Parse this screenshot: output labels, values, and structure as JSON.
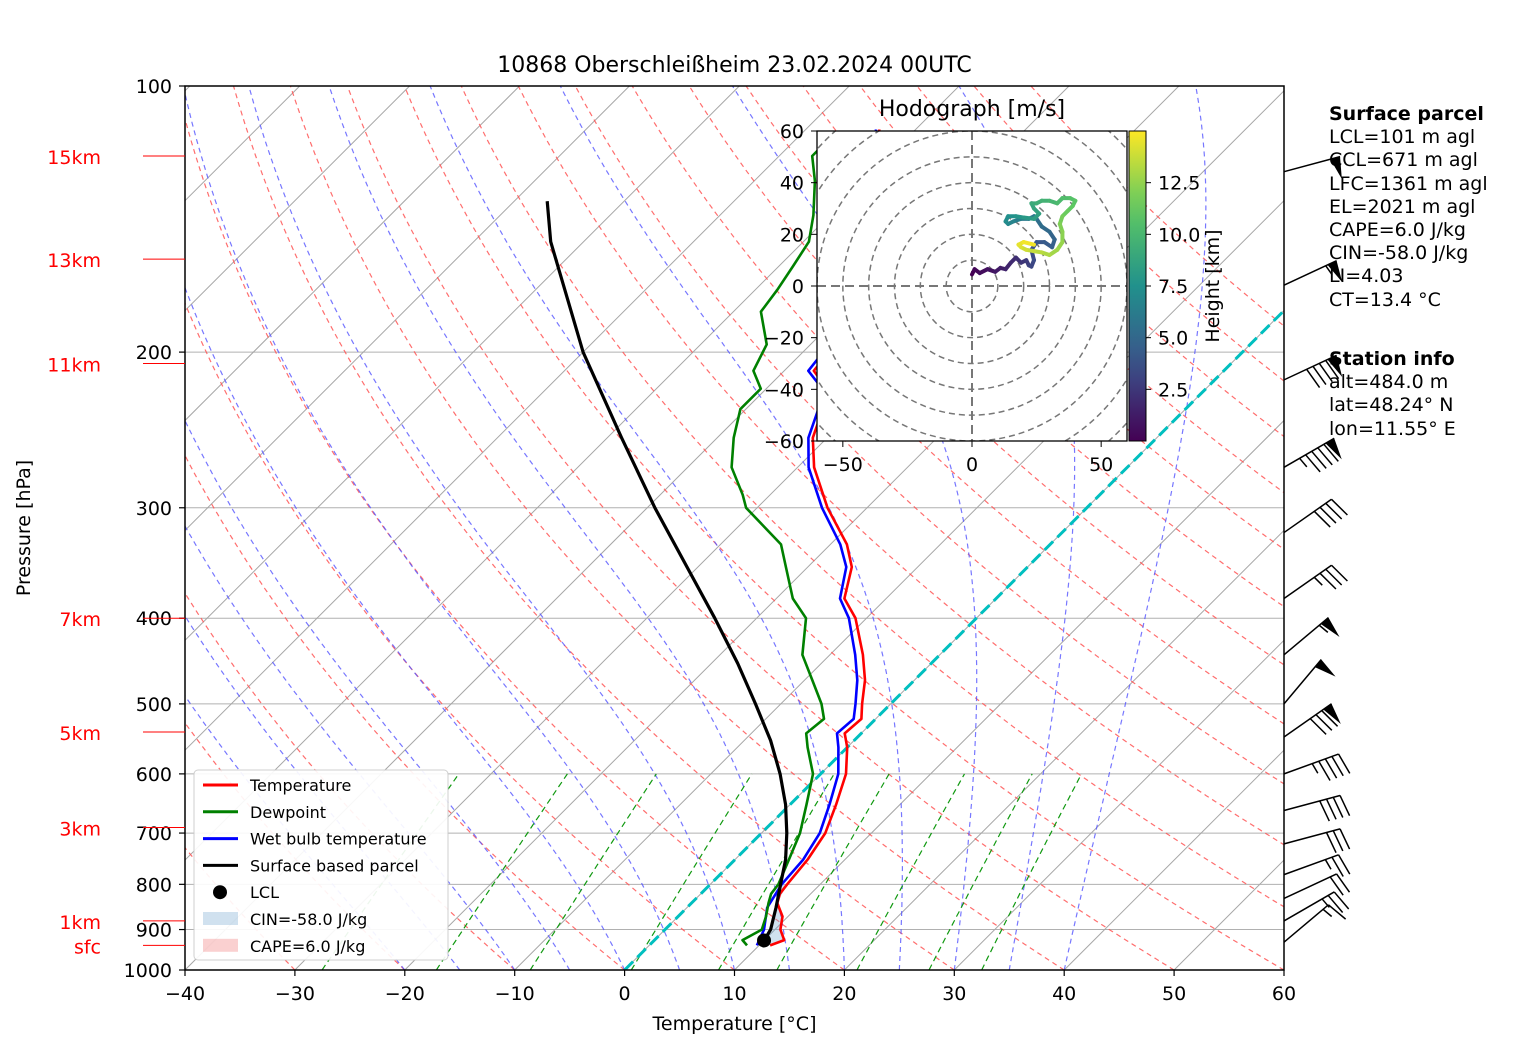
{
  "title": "10868 Oberschleißheim 23.02.2024 00UTC",
  "chart_data": {
    "type": "skew-t",
    "xlabel": "Temperature [°C]",
    "ylabel": "Pressure [hPa]",
    "xlim": [
      -40,
      60
    ],
    "ylim": [
      1000,
      100
    ],
    "x_ticks": [
      -40,
      -30,
      -20,
      -10,
      0,
      10,
      20,
      30,
      40,
      50,
      60
    ],
    "y_ticks": [
      1000,
      900,
      800,
      700,
      600,
      500,
      400,
      300,
      200,
      100
    ],
    "grid": true,
    "height_labels": [
      {
        "label": "15km",
        "pressure": 120
      },
      {
        "label": "13km",
        "pressure": 157
      },
      {
        "label": "11km",
        "pressure": 206
      },
      {
        "label": "7km",
        "pressure": 400
      },
      {
        "label": "5km",
        "pressure": 538
      },
      {
        "label": "3km",
        "pressure": 690
      },
      {
        "label": "1km",
        "pressure": 880
      },
      {
        "label": "sfc",
        "pressure": 938
      }
    ],
    "legend": {
      "location": "lower-left",
      "entries": [
        "Temperature",
        "Dewpoint",
        "Wet bulb temperature",
        "Surface based parcel",
        "LCL",
        "CIN=-58.0 J/kg",
        "CAPE=6.0 J/kg"
      ]
    },
    "series": [
      {
        "name": "Temperature",
        "color": "#ff0000",
        "points": [
          [
            938,
            11.0
          ],
          [
            925,
            11.8
          ],
          [
            900,
            10.5
          ],
          [
            870,
            9.5
          ],
          [
            840,
            7.8
          ],
          [
            820,
            7.2
          ],
          [
            800,
            7.0
          ],
          [
            750,
            6.6
          ],
          [
            700,
            5.8
          ],
          [
            650,
            4.2
          ],
          [
            600,
            2.3
          ],
          [
            560,
            0.0
          ],
          [
            540,
            -1.5
          ],
          [
            520,
            -1.3
          ],
          [
            500,
            -2.6
          ],
          [
            470,
            -4.5
          ],
          [
            440,
            -7.0
          ],
          [
            400,
            -11.0
          ],
          [
            380,
            -13.8
          ],
          [
            350,
            -16.0
          ],
          [
            330,
            -18.5
          ],
          [
            300,
            -23.6
          ],
          [
            270,
            -28.5
          ],
          [
            250,
            -31.3
          ],
          [
            232,
            -33.0
          ],
          [
            220,
            -34.5
          ],
          [
            210,
            -37.3
          ],
          [
            196,
            -37.8
          ],
          [
            190,
            -37.4
          ],
          [
            180,
            -37.5
          ],
          [
            170,
            -39.5
          ],
          [
            160,
            -43.0
          ],
          [
            150,
            -44.5
          ],
          [
            138,
            -46.5
          ],
          [
            128,
            -49.0
          ],
          [
            120,
            -51.0
          ],
          [
            112,
            -53.3
          ]
        ]
      },
      {
        "name": "Wet bulb temperature",
        "color": "#0000ff",
        "points": [
          [
            938,
            9.8
          ],
          [
            900,
            9.0
          ],
          [
            850,
            7.3
          ],
          [
            800,
            6.5
          ],
          [
            750,
            6.2
          ],
          [
            700,
            5.3
          ],
          [
            650,
            3.6
          ],
          [
            600,
            1.6
          ],
          [
            560,
            -0.8
          ],
          [
            540,
            -2.2
          ],
          [
            520,
            -2.0
          ],
          [
            500,
            -3.2
          ],
          [
            470,
            -5.2
          ],
          [
            440,
            -7.7
          ],
          [
            400,
            -11.6
          ],
          [
            380,
            -14.2
          ],
          [
            350,
            -16.5
          ],
          [
            330,
            -19.1
          ],
          [
            300,
            -24.1
          ],
          [
            270,
            -29.0
          ],
          [
            250,
            -31.7
          ],
          [
            232,
            -33.4
          ],
          [
            220,
            -34.9
          ],
          [
            210,
            -37.8
          ],
          [
            196,
            -38.3
          ],
          [
            190,
            -38.0
          ],
          [
            180,
            -38.0
          ],
          [
            170,
            -40.0
          ],
          [
            160,
            -43.4
          ],
          [
            150,
            -44.9
          ],
          [
            138,
            -46.9
          ],
          [
            128,
            -49.4
          ],
          [
            120,
            -51.4
          ],
          [
            112,
            -53.6
          ]
        ]
      },
      {
        "name": "Dewpoint",
        "color": "#008000",
        "points": [
          [
            938,
            8.9
          ],
          [
            925,
            8.0
          ],
          [
            900,
            8.8
          ],
          [
            870,
            8.0
          ],
          [
            840,
            7.0
          ],
          [
            820,
            6.4
          ],
          [
            800,
            6.2
          ],
          [
            750,
            4.9
          ],
          [
            700,
            3.5
          ],
          [
            650,
            1.5
          ],
          [
            600,
            -0.7
          ],
          [
            560,
            -3.6
          ],
          [
            540,
            -5.0
          ],
          [
            520,
            -4.7
          ],
          [
            500,
            -6.3
          ],
          [
            470,
            -9.3
          ],
          [
            440,
            -12.5
          ],
          [
            400,
            -15.5
          ],
          [
            380,
            -18.5
          ],
          [
            350,
            -22.0
          ],
          [
            330,
            -24.5
          ],
          [
            300,
            -31.0
          ],
          [
            290,
            -32.5
          ],
          [
            270,
            -36.0
          ],
          [
            250,
            -38.5
          ],
          [
            232,
            -40.5
          ],
          [
            220,
            -40.5
          ],
          [
            210,
            -42.8
          ],
          [
            196,
            -44.0
          ],
          [
            180,
            -47.5
          ],
          [
            170,
            -48.0
          ],
          [
            160,
            -48.7
          ],
          [
            150,
            -49.5
          ],
          [
            140,
            -51.5
          ],
          [
            128,
            -54.5
          ],
          [
            120,
            -57.0
          ],
          [
            113,
            -57.0
          ]
        ]
      },
      {
        "name": "Surface based parcel",
        "color": "#000000",
        "points": [
          [
            938,
            10.3
          ],
          [
            925,
            10.0
          ],
          [
            900,
            9.6
          ],
          [
            850,
            8.1
          ],
          [
            800,
            6.4
          ],
          [
            750,
            4.6
          ],
          [
            700,
            2.3
          ],
          [
            650,
            -0.4
          ],
          [
            600,
            -3.7
          ],
          [
            550,
            -7.6
          ],
          [
            500,
            -12.3
          ],
          [
            450,
            -17.6
          ],
          [
            400,
            -23.8
          ],
          [
            350,
            -31.0
          ],
          [
            300,
            -39.3
          ],
          [
            250,
            -48.7
          ],
          [
            200,
            -60.0
          ],
          [
            150,
            -73.0
          ],
          [
            135,
            -77.0
          ]
        ]
      }
    ],
    "lcl": {
      "pressure": 926,
      "temperature": 10.0
    },
    "zero_isotherm_color": "#00bfbf",
    "wind_barbs": [
      {
        "pressure": 125,
        "speed_kt": 50,
        "direction_deg": 255
      },
      {
        "pressure": 168,
        "speed_kt": 55,
        "direction_deg": 245
      },
      {
        "pressure": 215,
        "speed_kt": 90,
        "direction_deg": 245
      },
      {
        "pressure": 270,
        "speed_kt": 95,
        "direction_deg": 240
      },
      {
        "pressure": 320,
        "speed_kt": 40,
        "direction_deg": 235
      },
      {
        "pressure": 380,
        "speed_kt": 35,
        "direction_deg": 235
      },
      {
        "pressure": 440,
        "speed_kt": 55,
        "direction_deg": 230
      },
      {
        "pressure": 500,
        "speed_kt": 50,
        "direction_deg": 220
      },
      {
        "pressure": 545,
        "speed_kt": 80,
        "direction_deg": 235
      },
      {
        "pressure": 600,
        "speed_kt": 45,
        "direction_deg": 250
      },
      {
        "pressure": 660,
        "speed_kt": 40,
        "direction_deg": 255
      },
      {
        "pressure": 720,
        "speed_kt": 30,
        "direction_deg": 255
      },
      {
        "pressure": 780,
        "speed_kt": 25,
        "direction_deg": 250
      },
      {
        "pressure": 830,
        "speed_kt": 20,
        "direction_deg": 245
      },
      {
        "pressure": 880,
        "speed_kt": 25,
        "direction_deg": 240
      },
      {
        "pressure": 930,
        "speed_kt": 15,
        "direction_deg": 230
      }
    ]
  },
  "hodograph": {
    "title": "Hodograph [m/s]",
    "xlim": [
      -60,
      60
    ],
    "ylim": [
      -60,
      60
    ],
    "x_ticks": [
      -50,
      0,
      50
    ],
    "y_ticks": [
      60,
      40,
      20,
      0,
      -20,
      -40,
      -60
    ],
    "colorbar_label": "Height [km]",
    "colorbar_ticks": [
      2.5,
      5.0,
      7.5,
      10.0,
      12.5
    ],
    "colorbar_max_km": 15,
    "path": [
      [
        0,
        4.5
      ],
      [
        1,
        6.5
      ],
      [
        3,
        5
      ],
      [
        6,
        6.5
      ],
      [
        9,
        5.5
      ],
      [
        11,
        7
      ],
      [
        13,
        6.5
      ],
      [
        15,
        9
      ],
      [
        17,
        11
      ],
      [
        19,
        9
      ],
      [
        21,
        10
      ],
      [
        22,
        8
      ],
      [
        23,
        7.5
      ],
      [
        24,
        10
      ],
      [
        23,
        14
      ],
      [
        25,
        17
      ],
      [
        28,
        17
      ],
      [
        31,
        15
      ],
      [
        32,
        18
      ],
      [
        30,
        21
      ],
      [
        27,
        23
      ],
      [
        25,
        26
      ],
      [
        24,
        27
      ],
      [
        22,
        26
      ],
      [
        19,
        26
      ],
      [
        16,
        25
      ],
      [
        14,
        24
      ],
      [
        13,
        25
      ],
      [
        14,
        27
      ],
      [
        17,
        27
      ],
      [
        20,
        26.5
      ],
      [
        24,
        26
      ],
      [
        26,
        28
      ],
      [
        24,
        30
      ],
      [
        23,
        32
      ],
      [
        25,
        32
      ],
      [
        27,
        33
      ],
      [
        30,
        33
      ],
      [
        33,
        32
      ],
      [
        35,
        34
      ],
      [
        38,
        34
      ],
      [
        40,
        33
      ],
      [
        39,
        31
      ],
      [
        37,
        29
      ],
      [
        35,
        27
      ],
      [
        34,
        24
      ],
      [
        35,
        21
      ],
      [
        35,
        17
      ],
      [
        33,
        14
      ],
      [
        30,
        12
      ],
      [
        27,
        13
      ],
      [
        24,
        13.5
      ],
      [
        21,
        14
      ],
      [
        19,
        15
      ],
      [
        18,
        16
      ],
      [
        20,
        17
      ],
      [
        24,
        16
      ]
    ]
  },
  "surface_parcel": {
    "heading": "Surface parcel",
    "lines": [
      "LCL=101 m agl",
      "CCL=671 m agl",
      "LFC=1361 m agl",
      "EL=2021 m agl",
      "CAPE=6.0 J/kg",
      "CIN=-58.0 J/kg",
      "LI=4.03",
      "CT=13.4 °C"
    ]
  },
  "station_info": {
    "heading": "Station info",
    "lines": [
      "alt=484.0 m",
      "lat=48.24° N",
      "lon=11.55° E"
    ]
  }
}
